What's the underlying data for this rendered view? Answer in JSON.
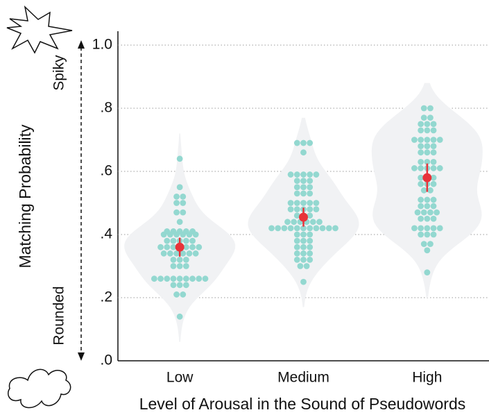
{
  "chart_data": {
    "type": "violin-swarm",
    "xlabel": "Level of Arousal in the Sound of Pseudowords",
    "ylabel": "Matching Probability",
    "annotations": {
      "top": "Spiky",
      "bottom": "Rounded"
    },
    "categories": [
      "Low",
      "Medium",
      "High"
    ],
    "points": [
      [
        0.64,
        0.55,
        0.52,
        0.52,
        0.5,
        0.5,
        0.47,
        0.47,
        0.44,
        0.41,
        0.41,
        0.41,
        0.41,
        0.41,
        0.4,
        0.4,
        0.4,
        0.4,
        0.4,
        0.4,
        0.38,
        0.38,
        0.38,
        0.38,
        0.38,
        0.36,
        0.36,
        0.36,
        0.36,
        0.36,
        0.36,
        0.36,
        0.34,
        0.34,
        0.34,
        0.34,
        0.34,
        0.34,
        0.32,
        0.32,
        0.32,
        0.3,
        0.3,
        0.3,
        0.26,
        0.26,
        0.26,
        0.26,
        0.26,
        0.26,
        0.26,
        0.26,
        0.26,
        0.24,
        0.24,
        0.24,
        0.21,
        0.21,
        0.14
      ],
      [
        0.69,
        0.69,
        0.69,
        0.66,
        0.59,
        0.59,
        0.59,
        0.59,
        0.59,
        0.57,
        0.57,
        0.57,
        0.55,
        0.55,
        0.55,
        0.53,
        0.53,
        0.53,
        0.5,
        0.5,
        0.5,
        0.5,
        0.5,
        0.48,
        0.48,
        0.48,
        0.48,
        0.48,
        0.46,
        0.46,
        0.46,
        0.44,
        0.44,
        0.44,
        0.44,
        0.44,
        0.44,
        0.42,
        0.42,
        0.42,
        0.42,
        0.42,
        0.42,
        0.42,
        0.42,
        0.42,
        0.42,
        0.42,
        0.4,
        0.4,
        0.4,
        0.38,
        0.38,
        0.38,
        0.36,
        0.36,
        0.36,
        0.34,
        0.34,
        0.34,
        0.32,
        0.32,
        0.32,
        0.3,
        0.3,
        0.25
      ],
      [
        0.8,
        0.8,
        0.77,
        0.77,
        0.75,
        0.75,
        0.75,
        0.73,
        0.73,
        0.73,
        0.7,
        0.7,
        0.7,
        0.7,
        0.7,
        0.68,
        0.68,
        0.68,
        0.66,
        0.66,
        0.66,
        0.63,
        0.63,
        0.63,
        0.61,
        0.61,
        0.61,
        0.61,
        0.61,
        0.58,
        0.58,
        0.58,
        0.56,
        0.56,
        0.56,
        0.54,
        0.54,
        0.51,
        0.51,
        0.51,
        0.49,
        0.49,
        0.49,
        0.47,
        0.47,
        0.47,
        0.47,
        0.45,
        0.45,
        0.45,
        0.42,
        0.42,
        0.42,
        0.42,
        0.42,
        0.4,
        0.4,
        0.4,
        0.37,
        0.37,
        0.35,
        0.28
      ]
    ],
    "means": [
      0.36,
      0.455,
      0.58
    ],
    "errors": [
      0.03,
      0.03,
      0.045
    ],
    "point_color": "#93d8d0",
    "mean_color": "#e8333a",
    "violin_color": "#f1f2f4",
    "ylim": [
      0,
      1
    ],
    "yticks": [
      {
        "value": 0,
        "label": ".0"
      },
      {
        "value": 0.2,
        "label": ".2"
      },
      {
        "value": 0.4,
        "label": ".4"
      },
      {
        "value": 0.6,
        "label": ".6"
      },
      {
        "value": 0.8,
        "label": ".8"
      },
      {
        "value": 1,
        "label": "1.0"
      }
    ],
    "grid": true
  }
}
